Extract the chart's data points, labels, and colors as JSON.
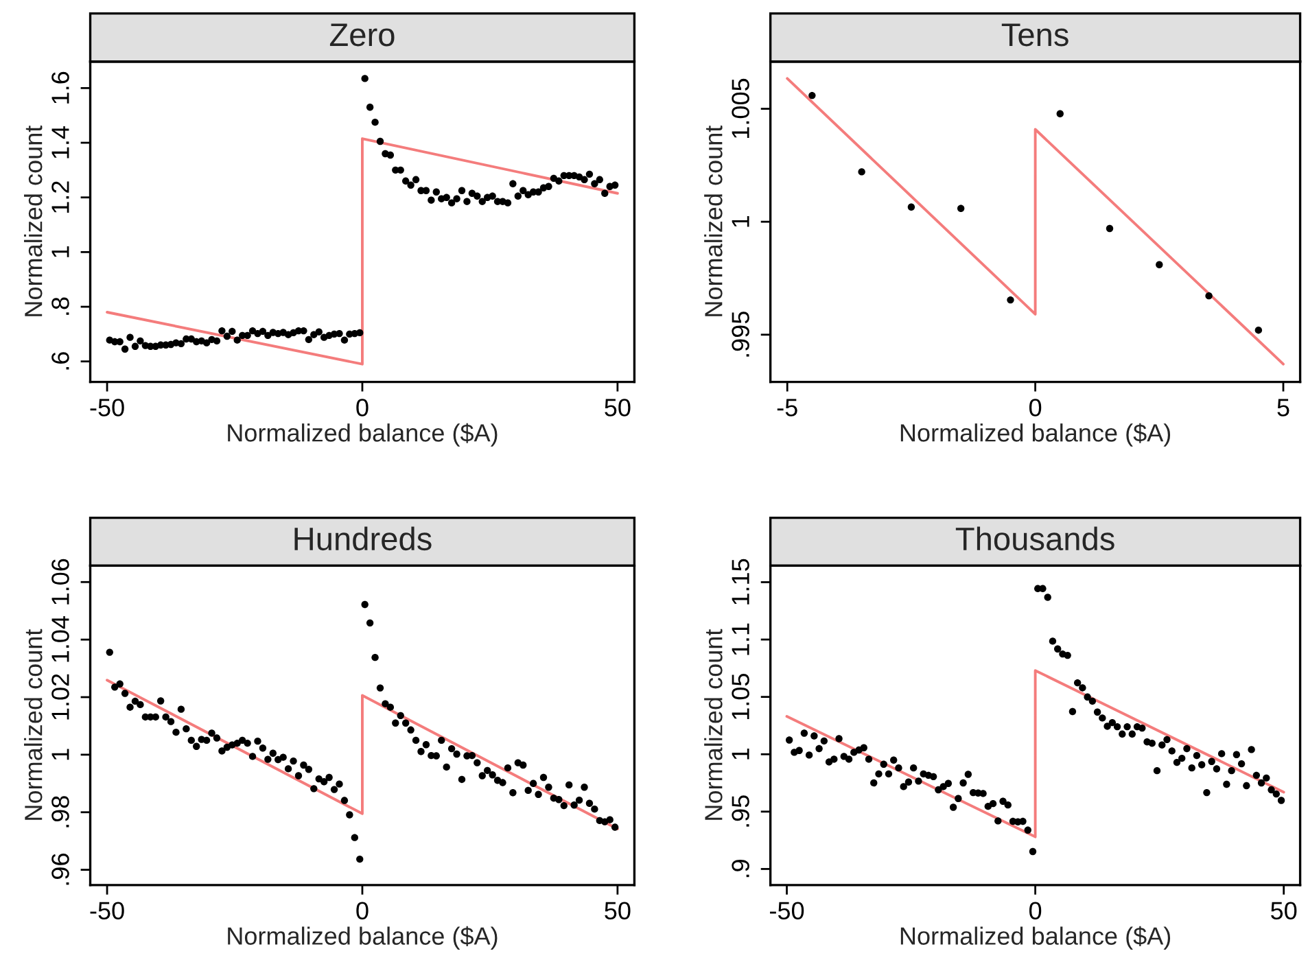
{
  "chart_data": [
    {
      "type": "scatter",
      "title": "Zero",
      "xlabel": "Normalized balance ($A)",
      "ylabel": "Normalized count",
      "xlim": [
        -53.3,
        53.3
      ],
      "xticks": [
        -50,
        0,
        50
      ],
      "ylim": [
        0.525,
        1.697
      ],
      "yticks": [
        {
          "value": 0.6,
          "label": ".6"
        },
        {
          "value": 0.8,
          "label": ".8"
        },
        1,
        1.2,
        1.4,
        1.6
      ],
      "marker": "circle",
      "series": [
        {
          "type": "scatter",
          "color": "#000000",
          "x": [
            -49.5,
            -48.5,
            -47.5,
            -46.5,
            -45.5,
            -44.5,
            -43.5,
            -42.5,
            -41.5,
            -40.5,
            -39.5,
            -38.5,
            -37.5,
            -36.5,
            -35.5,
            -34.5,
            -33.5,
            -32.5,
            -31.5,
            -30.5,
            -29.5,
            -28.5,
            -27.5,
            -26.5,
            -25.5,
            -24.5,
            -23.5,
            -22.5,
            -21.5,
            -20.5,
            -19.5,
            -18.5,
            -17.5,
            -16.5,
            -15.5,
            -14.5,
            -13.5,
            -12.5,
            -11.5,
            -10.5,
            -9.5,
            -8.5,
            -7.5,
            -6.5,
            -5.5,
            -4.5,
            -3.5,
            -2.5,
            -1.5,
            -0.5,
            0.5,
            1.5,
            2.5,
            3.5,
            4.5,
            5.5,
            6.5,
            7.5,
            8.5,
            9.5,
            10.5,
            11.5,
            12.5,
            13.5,
            14.5,
            15.5,
            16.5,
            17.5,
            18.5,
            19.5,
            20.5,
            21.5,
            22.5,
            23.5,
            24.5,
            25.5,
            26.5,
            27.5,
            28.5,
            29.5,
            30.5,
            31.5,
            32.5,
            33.5,
            34.5,
            35.5,
            36.5,
            37.5,
            38.5,
            39.5,
            40.5,
            41.5,
            42.5,
            43.5,
            44.5,
            45.5,
            46.5,
            47.5,
            48.5,
            49.5
          ],
          "values": [
            0.678,
            0.672,
            0.672,
            0.645,
            0.688,
            0.655,
            0.675,
            0.658,
            0.655,
            0.655,
            0.66,
            0.66,
            0.662,
            0.668,
            0.665,
            0.682,
            0.682,
            0.672,
            0.675,
            0.668,
            0.68,
            0.675,
            0.712,
            0.692,
            0.71,
            0.678,
            0.695,
            0.695,
            0.712,
            0.702,
            0.71,
            0.695,
            0.706,
            0.702,
            0.706,
            0.698,
            0.705,
            0.712,
            0.712,
            0.68,
            0.698,
            0.708,
            0.688,
            0.695,
            0.7,
            0.702,
            0.678,
            0.7,
            0.702,
            0.705,
            1.635,
            1.53,
            1.475,
            1.405,
            1.36,
            1.355,
            1.3,
            1.3,
            1.26,
            1.245,
            1.265,
            1.225,
            1.225,
            1.19,
            1.22,
            1.195,
            1.2,
            1.18,
            1.195,
            1.225,
            1.185,
            1.215,
            1.205,
            1.185,
            1.2,
            1.205,
            1.185,
            1.185,
            1.18,
            1.25,
            1.205,
            1.225,
            1.21,
            1.22,
            1.22,
            1.235,
            1.24,
            1.27,
            1.26,
            1.28,
            1.28,
            1.28,
            1.275,
            1.265,
            1.285,
            1.25,
            1.265,
            1.215,
            1.24,
            1.245
          ]
        },
        {
          "type": "line",
          "color": "#f47c7c",
          "x": [
            -50,
            0,
            0,
            50
          ],
          "values": [
            0.78,
            0.59,
            1.415,
            1.215
          ],
          "marker": "none"
        }
      ]
    },
    {
      "type": "scatter",
      "title": "Tens",
      "xlabel": "Normalized balance ($A)",
      "ylabel": "Normalized count",
      "xlim": [
        -5.34,
        5.34
      ],
      "xticks": [
        -5,
        0,
        5
      ],
      "ylim": [
        0.99291,
        1.00709
      ],
      "yticks": [
        {
          "value": 0.995,
          "label": ".995"
        },
        1,
        1.005
      ],
      "marker": "circle",
      "series": [
        {
          "type": "scatter",
          "color": "#000000",
          "x": [
            -4.5,
            -3.5,
            -2.5,
            -1.5,
            -0.5,
            0.5,
            1.5,
            2.5,
            3.5,
            4.5
          ],
          "values": [
            1.00559,
            1.00221,
            1.00065,
            1.00059,
            0.99654,
            1.00478,
            0.9997,
            0.9981,
            0.99672,
            0.9952
          ]
        },
        {
          "type": "line",
          "color": "#f47c7c",
          "x": [
            -5,
            0,
            0,
            5
          ],
          "values": [
            1.00634,
            0.99591,
            1.00409,
            0.9937
          ],
          "marker": "none"
        }
      ]
    },
    {
      "type": "scatter",
      "title": "Hundreds",
      "xlabel": "Normalized balance ($A)",
      "ylabel": "Normalized count",
      "xlim": [
        -53.3,
        53.3
      ],
      "xticks": [
        -50,
        0,
        50
      ],
      "ylim": [
        0.9547,
        1.0657
      ],
      "yticks": [
        {
          "value": 0.96,
          "label": ".96"
        },
        {
          "value": 0.98,
          "label": ".98"
        },
        1,
        1.02,
        1.04,
        1.06
      ],
      "marker": "circle",
      "series": [
        {
          "type": "scatter",
          "color": "#000000",
          "x": [
            -49.5,
            -48.5,
            -47.5,
            -46.5,
            -45.5,
            -44.5,
            -43.5,
            -42.5,
            -41.5,
            -40.5,
            -39.5,
            -38.5,
            -37.5,
            -36.5,
            -35.5,
            -34.5,
            -33.5,
            -32.5,
            -31.5,
            -30.5,
            -29.5,
            -28.5,
            -27.5,
            -26.5,
            -25.5,
            -24.5,
            -23.5,
            -22.5,
            -21.5,
            -20.5,
            -19.5,
            -18.5,
            -17.5,
            -16.5,
            -15.5,
            -14.5,
            -13.5,
            -12.5,
            -11.5,
            -10.5,
            -9.5,
            -8.5,
            -7.5,
            -6.5,
            -5.5,
            -4.5,
            -3.5,
            -2.5,
            -1.5,
            -0.5,
            0.5,
            1.5,
            2.5,
            3.5,
            4.5,
            5.5,
            6.5,
            7.5,
            8.5,
            9.5,
            10.5,
            11.5,
            12.5,
            13.5,
            14.5,
            15.5,
            16.5,
            17.5,
            18.5,
            19.5,
            20.5,
            21.5,
            22.5,
            23.5,
            24.5,
            25.5,
            26.5,
            27.5,
            28.5,
            29.5,
            30.5,
            31.5,
            32.5,
            33.5,
            34.5,
            35.5,
            36.5,
            37.5,
            38.5,
            39.5,
            40.5,
            41.5,
            42.5,
            43.5,
            44.5,
            45.5,
            46.5,
            47.5,
            48.5,
            49.5
          ],
          "values": [
            1.0356,
            1.0235,
            1.0246,
            1.0213,
            1.0165,
            1.0186,
            1.0174,
            1.0131,
            1.0131,
            1.0131,
            1.0187,
            1.0131,
            1.0115,
            1.0078,
            1.0158,
            1.009,
            1.005,
            1.0029,
            1.0053,
            1.005,
            1.0075,
            1.0058,
            1.0013,
            1.0026,
            1.0034,
            1.004,
            1.005,
            1.004,
            0.9994,
            1.0047,
            1.0023,
            0.9984,
            1.0005,
            0.9983,
            0.9991,
            0.9951,
            0.9978,
            0.9927,
            0.9964,
            0.9949,
            0.9882,
            0.9916,
            0.9906,
            0.9921,
            0.9879,
            0.9898,
            0.9841,
            0.9791,
            0.9712,
            0.9637,
            1.0522,
            1.0458,
            1.0338,
            1.0232,
            1.0177,
            1.0165,
            1.011,
            1.0136,
            1.011,
            1.0086,
            1.005,
            1.0011,
            1.0035,
            0.9997,
            0.9996,
            1.005,
            0.9957,
            1.0021,
            1.0002,
            0.9914,
            0.9996,
            0.9997,
            0.9972,
            0.9927,
            0.9945,
            0.993,
            0.9911,
            0.9903,
            0.9954,
            0.9868,
            0.9972,
            0.9964,
            0.9876,
            0.99,
            0.9862,
            0.9921,
            0.9887,
            0.9849,
            0.9844,
            0.9823,
            0.9895,
            0.9825,
            0.9842,
            0.9887,
            0.9831,
            0.9811,
            0.9771,
            0.9767,
            0.9774,
            0.9748
          ]
        },
        {
          "type": "line",
          "color": "#f47c7c",
          "x": [
            -50,
            0,
            0,
            50
          ],
          "values": [
            1.0259,
            0.9795,
            1.0206,
            0.9742
          ],
          "marker": "none"
        }
      ]
    },
    {
      "type": "scatter",
      "title": "Thousands",
      "xlabel": "Normalized balance ($A)",
      "ylabel": "Normalized count",
      "xlim": [
        -53.3,
        53.3
      ],
      "xticks": [
        -50,
        0,
        50
      ],
      "ylim": [
        0.886,
        1.1644
      ],
      "yticks": [
        {
          "value": 0.9,
          "label": ".9"
        },
        {
          "value": 0.95,
          "label": ".95"
        },
        1,
        1.05,
        1.1,
        1.15
      ],
      "marker": "circle",
      "series": [
        {
          "type": "scatter",
          "color": "#000000",
          "x": [
            -49.5,
            -48.5,
            -47.5,
            -46.5,
            -45.5,
            -44.5,
            -43.5,
            -42.5,
            -41.5,
            -40.5,
            -39.5,
            -38.5,
            -37.5,
            -36.5,
            -35.5,
            -34.5,
            -33.5,
            -32.5,
            -31.5,
            -30.5,
            -29.5,
            -28.5,
            -27.5,
            -26.5,
            -25.5,
            -24.5,
            -23.5,
            -22.5,
            -21.5,
            -20.5,
            -19.5,
            -18.5,
            -17.5,
            -16.5,
            -15.5,
            -14.5,
            -13.5,
            -12.5,
            -11.5,
            -10.5,
            -9.5,
            -8.5,
            -7.5,
            -6.5,
            -5.5,
            -4.5,
            -3.5,
            -2.5,
            -1.5,
            -0.5,
            0.5,
            1.5,
            2.5,
            3.5,
            4.5,
            5.5,
            6.5,
            7.5,
            8.5,
            9.5,
            10.5,
            11.5,
            12.5,
            13.5,
            14.5,
            15.5,
            16.5,
            17.5,
            18.5,
            19.5,
            20.5,
            21.5,
            22.5,
            23.5,
            24.5,
            25.5,
            26.5,
            27.5,
            28.5,
            29.5,
            30.5,
            31.5,
            32.5,
            33.5,
            34.5,
            35.5,
            36.5,
            37.5,
            38.5,
            39.5,
            40.5,
            41.5,
            42.5,
            43.5,
            44.5,
            45.5,
            46.5,
            47.5,
            48.5,
            49.5
          ],
          "values": [
            1.0124,
            1.0017,
            1.0033,
            1.0184,
            0.9993,
            1.016,
            1.0049,
            1.0116,
            0.9933,
            0.9957,
            1.0136,
            0.9981,
            0.9957,
            1.0017,
            1.0037,
            1.0057,
            0.9957,
            0.975,
            0.9829,
            0.9913,
            0.9829,
            0.9949,
            0.9881,
            0.9718,
            0.9758,
            0.9881,
            0.9766,
            0.9829,
            0.9817,
            0.9805,
            0.969,
            0.9718,
            0.9746,
            0.9538,
            0.9614,
            0.975,
            0.9825,
            0.9666,
            0.9662,
            0.9658,
            0.9546,
            0.957,
            0.9419,
            0.959,
            0.9558,
            0.9415,
            0.9411,
            0.9415,
            0.9339,
            0.9152,
            1.1444,
            1.1444,
            1.1368,
            1.0986,
            1.0918,
            1.0874,
            1.0862,
            1.0372,
            1.0623,
            1.0579,
            1.0499,
            1.0463,
            1.0368,
            1.0316,
            1.0244,
            1.0276,
            1.024,
            1.0176,
            1.024,
            1.0176,
            1.024,
            1.0228,
            1.0108,
            1.0096,
            0.9857,
            1.0081,
            1.0128,
            1.0029,
            0.9929,
            0.9965,
            1.0049,
            0.9881,
            0.9989,
            0.9909,
            0.9666,
            0.9937,
            0.9873,
            1.0005,
            0.9738,
            0.9857,
            0.9997,
            0.9917,
            0.9726,
            1.0041,
            0.9817,
            0.975,
            0.9793,
            0.969,
            0.9654,
            0.9598
          ]
        },
        {
          "type": "line",
          "color": "#f47c7c",
          "x": [
            -50,
            0,
            0,
            50
          ],
          "values": [
            1.033,
            0.928,
            1.073,
            0.967
          ],
          "marker": "none"
        }
      ]
    }
  ]
}
